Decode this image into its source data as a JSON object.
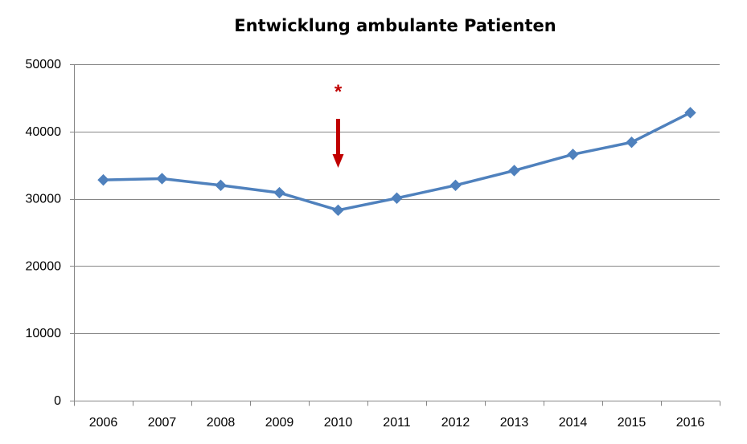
{
  "chart_data": {
    "type": "line",
    "title": "Entwicklung ambulante Patienten",
    "xlabel": "",
    "ylabel": "",
    "categories": [
      "2006",
      "2007",
      "2008",
      "2009",
      "2010",
      "2011",
      "2012",
      "2013",
      "2014",
      "2015",
      "2016"
    ],
    "series": [
      {
        "values": [
          32800,
          33000,
          32000,
          30900,
          28300,
          30100,
          32000,
          34200,
          36600,
          38400,
          42800
        ]
      }
    ],
    "ylim": [
      0,
      50000
    ],
    "yticks": [
      0,
      10000,
      20000,
      30000,
      40000,
      50000
    ],
    "grid": true,
    "legend": "none",
    "annotation": {
      "category": "2010",
      "symbol": "*",
      "arrow": "down"
    },
    "colors": {
      "line": "#4F81BD",
      "grid": "#868686",
      "axis": "#868686",
      "annotation": "#C00000"
    }
  }
}
